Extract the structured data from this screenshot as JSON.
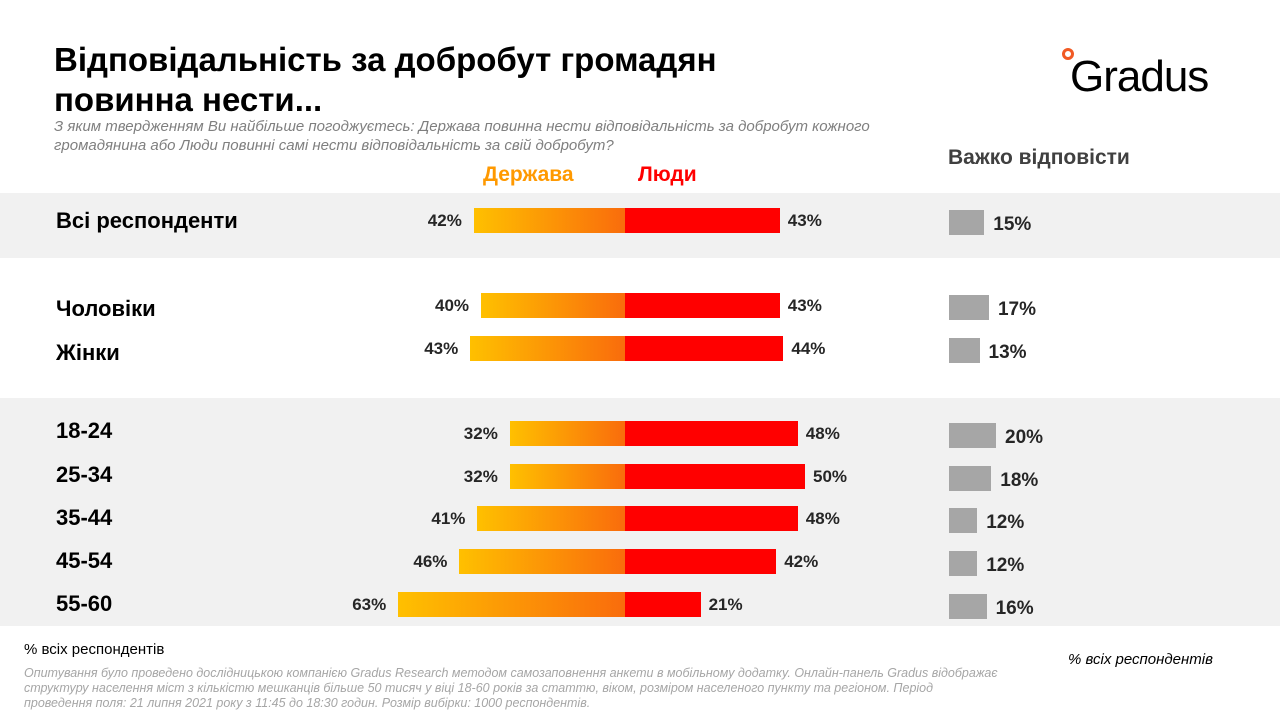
{
  "title": "Відповідальність за добробут громадян повинна нести...",
  "subtitle": "З яким твердженням Ви найбільше погоджуєтесь: Держава повинна нести відповідальність за добробут кожного громадянина або Люди повинні самі нести відповідальність за свій добробут?",
  "logo": "Gradus",
  "colors": {
    "state": "#ffc000",
    "people": "#ff0000",
    "hard": "#a6a6a6"
  },
  "chart_data": {
    "type": "bar",
    "series_names": [
      "Держава",
      "Люди",
      "Важко відповісти"
    ],
    "categories": [
      "Всі респонденти",
      "Чоловіки",
      "Жінки",
      "18-24",
      "25-34",
      "35-44",
      "45-54",
      "55-60"
    ],
    "series": [
      {
        "name": "Держава",
        "values": [
          42,
          40,
          43,
          32,
          32,
          41,
          46,
          63
        ]
      },
      {
        "name": "Люди",
        "values": [
          43,
          43,
          44,
          48,
          50,
          48,
          42,
          21
        ]
      },
      {
        "name": "Важко відповісти",
        "values": [
          15,
          17,
          13,
          20,
          18,
          12,
          12,
          16
        ]
      }
    ],
    "unit": "%"
  },
  "notes": {
    "left": "% всіх респондентів",
    "right": "% всіх респондентів",
    "footer": "Опитування було проведено дослідницькою компанією Gradus Research методом самозаповнення анкети в мобільному додатку. Онлайн-панель Gradus відображає структуру населення міст з кількістю мешканців більше 50 тисяч у віці 18-60 років за статтю, віком, розміром населеного пункту та регіоном. Період проведення поля: 21 липня 2021 року з 11:45 до 18:30 годин. Розмір вибірки: 1000 респондентів."
  }
}
